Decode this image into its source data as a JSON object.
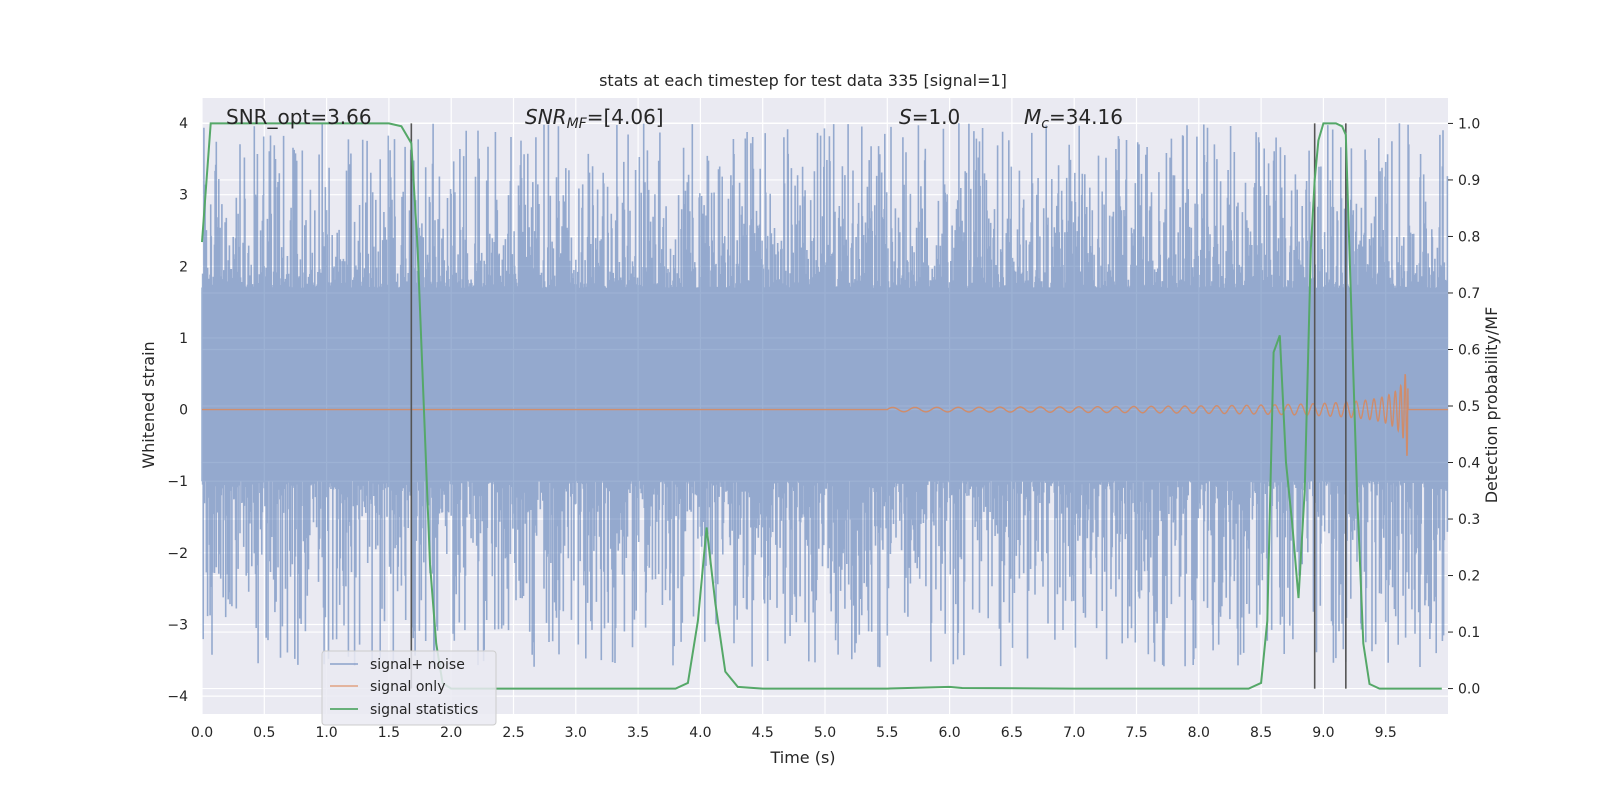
{
  "chart_data": {
    "type": "line",
    "title": "stats at each timestep for test data 335 [signal=1]",
    "xlabel": "Time (s)",
    "ylabel": "Whitened strain",
    "ylabel_right": "Detection probability/MF",
    "xlim": [
      0.0,
      10.0
    ],
    "ylim": [
      -4.25,
      4.35
    ],
    "ylim_right": [
      -0.045,
      1.045
    ],
    "x_ticks": [
      "0.0",
      "0.5",
      "1.0",
      "1.5",
      "2.0",
      "2.5",
      "3.0",
      "3.5",
      "4.0",
      "4.5",
      "5.0",
      "5.5",
      "6.0",
      "6.5",
      "7.0",
      "7.5",
      "8.0",
      "8.5",
      "9.0",
      "9.5"
    ],
    "y_ticks": [
      "4",
      "3",
      "2",
      "1",
      "0",
      "−1",
      "−2",
      "−3",
      "−4"
    ],
    "y_right_ticks": [
      "1.0",
      "0.9",
      "0.8",
      "0.7",
      "0.6",
      "0.5",
      "0.4",
      "0.3",
      "0.2",
      "0.1",
      "0.0"
    ],
    "grid": true,
    "legend_position": "lower-left",
    "annotations": {
      "snr_opt": "SNR_opt=3.66",
      "snr_mf_sym": "SNR",
      "snr_mf_sub": "MF",
      "snr_mf_val": "=[4.06]",
      "s_sym": "S",
      "s_val": "=1.0",
      "mc_sym": "M",
      "mc_sub": "c",
      "mc_val": "=34.16"
    },
    "vertical_lines_x": [
      1.68,
      8.93,
      9.18
    ],
    "series": [
      {
        "name": "signal+ noise",
        "color": "#4c72b0",
        "description_kind": "noise",
        "approx_envelope": {
          "upper": [
            1.7,
            4.0
          ],
          "lower": [
            -1.0,
            -3.6
          ]
        }
      },
      {
        "name": "signal only",
        "color": "#dd8452",
        "chirp": {
          "start_x": 5.5,
          "end_x": 9.68,
          "peak_amplitude": 0.88
        }
      },
      {
        "name": "signal statistics",
        "color": "#55a868",
        "axis": "right",
        "x": [
          0.0,
          0.07,
          0.15,
          0.3,
          0.6,
          1.0,
          1.3,
          1.5,
          1.6,
          1.68,
          1.73,
          1.78,
          1.83,
          1.88,
          1.93,
          2.0,
          3.0,
          3.8,
          3.9,
          3.98,
          4.05,
          4.12,
          4.2,
          4.3,
          4.5,
          5.5,
          6.0,
          6.1,
          7.0,
          8.0,
          8.4,
          8.5,
          8.55,
          8.6,
          8.65,
          8.7,
          8.75,
          8.8,
          8.85,
          8.9,
          8.93,
          8.96,
          9.0,
          9.05,
          9.1,
          9.15,
          9.18,
          9.22,
          9.27,
          9.32,
          9.37,
          9.45,
          9.6,
          9.95
        ],
        "y": [
          0.79,
          1.0,
          1.0,
          1.0,
          1.0,
          1.0,
          1.0,
          1.0,
          0.995,
          0.965,
          0.78,
          0.5,
          0.22,
          0.08,
          0.01,
          0.0,
          0.0,
          0.0,
          0.01,
          0.12,
          0.285,
          0.15,
          0.03,
          0.003,
          0.0,
          0.0,
          0.003,
          0.001,
          0.0,
          0.0,
          0.0,
          0.01,
          0.12,
          0.595,
          0.625,
          0.4,
          0.29,
          0.16,
          0.35,
          0.78,
          0.9,
          0.97,
          1.0,
          1.0,
          1.0,
          0.995,
          0.98,
          0.7,
          0.35,
          0.08,
          0.008,
          0.0,
          0.0,
          0.0
        ]
      }
    ]
  }
}
